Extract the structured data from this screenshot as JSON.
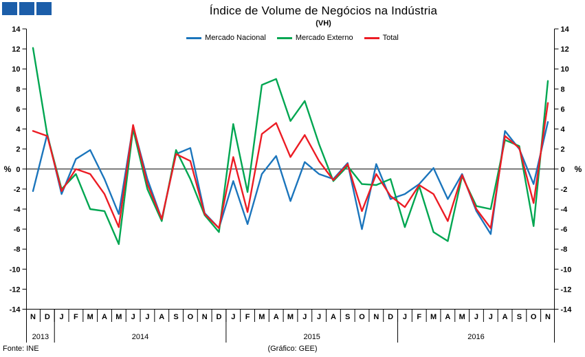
{
  "header": {
    "title": "Índice de Volume de Negócios na Indústria",
    "subtitle": "(VH)"
  },
  "logo": {
    "color": "#1c5ea9",
    "square_count": 3
  },
  "footer": {
    "source": "Fonte: INE",
    "credit": "(Gráfico: GEE)"
  },
  "chart_data": {
    "type": "line",
    "title": "Índice de Volume de Negócios na Indústria",
    "subtitle": "(VH)",
    "ylabel_left": "%",
    "ylabel_right": "%",
    "ylim": [
      -14,
      14
    ],
    "y_ticks": [
      14,
      12,
      10,
      8,
      6,
      4,
      2,
      0,
      -2,
      -4,
      -6,
      -8,
      -10,
      -12,
      -14
    ],
    "grid": false,
    "legend_position": "top",
    "categories": [
      "N",
      "D",
      "J",
      "F",
      "M",
      "A",
      "M",
      "J",
      "J",
      "A",
      "S",
      "O",
      "N",
      "D",
      "J",
      "F",
      "M",
      "A",
      "M",
      "J",
      "J",
      "A",
      "S",
      "O",
      "N",
      "D",
      "J",
      "F",
      "M",
      "A",
      "M",
      "J",
      "J",
      "A",
      "S",
      "O",
      "N"
    ],
    "year_groups": [
      {
        "label": "2013",
        "count": 2
      },
      {
        "label": "2014",
        "count": 12
      },
      {
        "label": "2015",
        "count": 12
      },
      {
        "label": "2016",
        "count": 11
      }
    ],
    "series": [
      {
        "name": "Mercado Nacional",
        "color": "#1b75bc",
        "values": [
          -2.2,
          3.5,
          -2.5,
          1.0,
          1.9,
          -1.0,
          -4.5,
          4.3,
          -1.0,
          -5.0,
          1.5,
          2.1,
          -4.4,
          -5.9,
          -1.2,
          -5.5,
          -0.5,
          1.3,
          -3.2,
          0.7,
          -0.5,
          -1.0,
          0.6,
          -6.0,
          0.5,
          -3.0,
          -2.5,
          -1.5,
          0.1,
          -3.0,
          -0.5,
          -4.2,
          -6.5,
          3.8,
          2.0,
          -1.5,
          4.7
        ]
      },
      {
        "name": "Mercado Externo",
        "color": "#00a651",
        "values": [
          12.1,
          3.4,
          -2.0,
          -0.5,
          -4.0,
          -4.2,
          -7.5,
          4.0,
          -2.0,
          -5.2,
          1.9,
          -1.0,
          -4.6,
          -6.3,
          4.5,
          -2.3,
          8.4,
          9.0,
          4.8,
          6.8,
          2.5,
          -1.2,
          0.3,
          -1.5,
          -1.6,
          -1.0,
          -5.8,
          -1.7,
          -6.3,
          -7.2,
          -0.7,
          -3.7,
          -4.0,
          2.9,
          2.3,
          -5.7,
          8.8
        ]
      },
      {
        "name": "Total",
        "color": "#ec1c24",
        "values": [
          3.8,
          3.3,
          -2.2,
          0.0,
          -0.5,
          -2.5,
          -5.8,
          4.4,
          -1.5,
          -5.0,
          1.5,
          0.8,
          -4.5,
          -5.9,
          1.2,
          -4.3,
          3.5,
          4.6,
          1.2,
          3.4,
          0.8,
          -1.1,
          0.5,
          -4.2,
          -0.5,
          -2.7,
          -3.8,
          -1.6,
          -2.5,
          -5.2,
          -0.6,
          -4.0,
          -5.9,
          3.3,
          2.1,
          -3.4,
          6.6
        ]
      }
    ]
  }
}
